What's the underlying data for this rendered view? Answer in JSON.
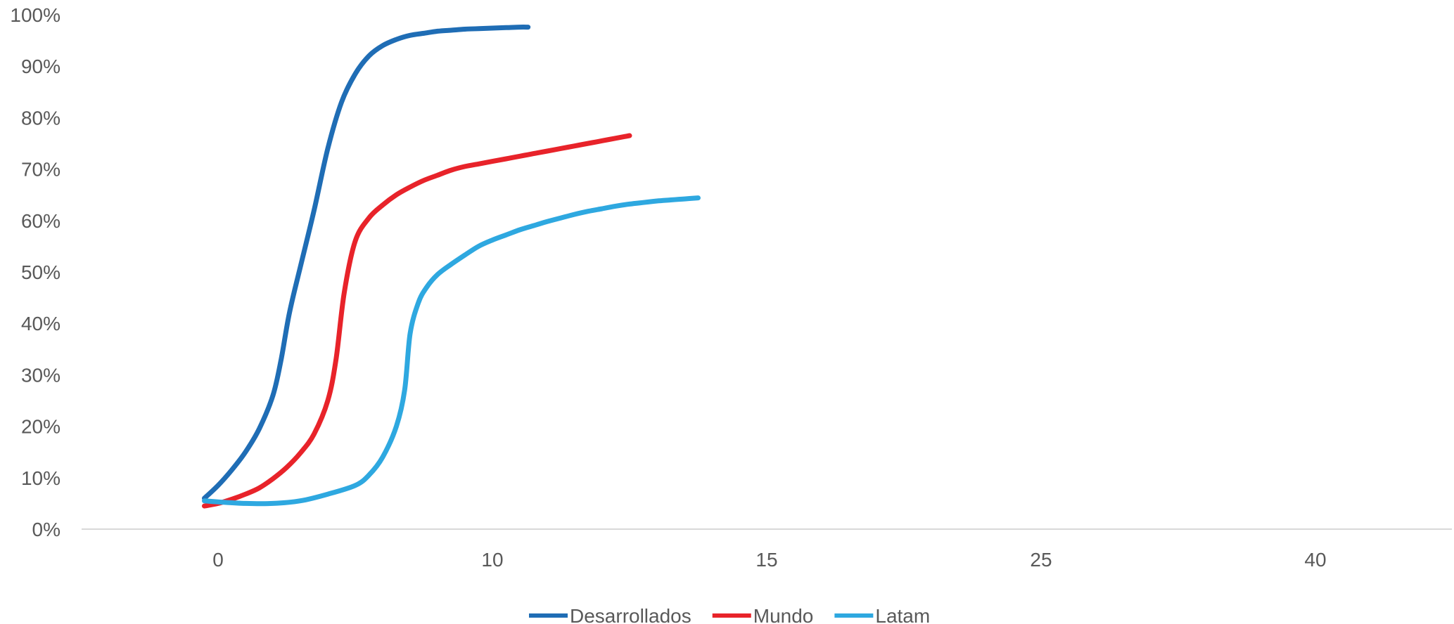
{
  "chart_data": {
    "type": "line",
    "x_tick_labels": [
      "0",
      "10",
      "15",
      "25",
      "40"
    ],
    "y_ticks": [
      0,
      10,
      20,
      30,
      40,
      50,
      60,
      70,
      80,
      90,
      100
    ],
    "y_tick_labels": [
      "0%",
      "10%",
      "20%",
      "30%",
      "40%",
      "50%",
      "60%",
      "70%",
      "80%",
      "90%",
      "100%"
    ],
    "ylim": [
      0,
      100
    ],
    "grid": false,
    "legend_position": "bottom",
    "series": [
      {
        "name": "Desarrollados",
        "color": "#1F6DB5",
        "x": [
          -0.5,
          0,
          0.5,
          1,
          1.5,
          2,
          2.3,
          2.6,
          3,
          3.5,
          4,
          4.5,
          5,
          5.5,
          6,
          6.5,
          7,
          7.5,
          8,
          8.5,
          9,
          9.5,
          10,
          10.5,
          11,
          11.3
        ],
        "values": [
          6,
          8.5,
          11.5,
          15,
          19.5,
          26,
          33,
          42,
          51,
          62,
          74,
          83,
          88.5,
          92,
          94,
          95.2,
          96,
          96.4,
          96.8,
          97,
          97.2,
          97.3,
          97.4,
          97.5,
          97.6,
          97.6
        ]
      },
      {
        "name": "Mundo",
        "color": "#E8232A",
        "x": [
          -0.5,
          0,
          0.5,
          1,
          1.5,
          2,
          2.5,
          3,
          3.5,
          4,
          4.3,
          4.6,
          5,
          5.5,
          6,
          6.5,
          7,
          7.5,
          8,
          8.5,
          9,
          9.5,
          10,
          10.5,
          11,
          11.5,
          12,
          12.5,
          13,
          13.5,
          14,
          14.5,
          15
        ],
        "values": [
          4.5,
          5,
          5.8,
          6.8,
          8,
          9.8,
          12,
          14.8,
          18.5,
          25,
          33,
          46,
          56,
          60.5,
          63,
          65,
          66.5,
          67.8,
          68.8,
          69.8,
          70.5,
          71,
          71.5,
          72,
          72.5,
          73,
          73.5,
          74,
          74.5,
          75,
          75.5,
          76,
          76.5
        ]
      },
      {
        "name": "Latam",
        "color": "#2EA8E0",
        "x": [
          -0.5,
          0,
          1,
          2,
          3,
          4,
          5,
          5.5,
          6,
          6.5,
          6.8,
          7,
          7.3,
          7.6,
          8,
          8.5,
          9,
          9.5,
          10,
          10.5,
          11,
          11.5,
          12,
          12.5,
          13,
          13.5,
          14,
          14.5,
          15,
          15.5,
          16,
          16.5,
          17,
          17.5
        ],
        "values": [
          5.5,
          5.3,
          5,
          5,
          5.5,
          6.8,
          8.5,
          10.5,
          14,
          20,
          27,
          38,
          44,
          47,
          49.5,
          51.5,
          53.3,
          55,
          56.2,
          57.2,
          58.2,
          59,
          59.8,
          60.5,
          61.2,
          61.8,
          62.3,
          62.8,
          63.2,
          63.5,
          63.8,
          64,
          64.2,
          64.4
        ]
      }
    ]
  }
}
